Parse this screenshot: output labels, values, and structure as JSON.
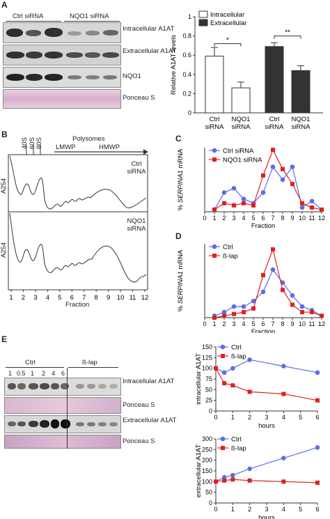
{
  "panel_A": {
    "label": "A",
    "ctrl_header": "Ctrl siRNA",
    "nqo1_header": "NQO1 siRNA",
    "blot_labels": [
      "Intracellular A1AT",
      "Extracellular A1AT",
      "NQO1",
      "Ponceau S"
    ]
  },
  "panel_B": {
    "label": "B",
    "peak_labels": [
      "40S",
      "60S",
      "80S"
    ],
    "polysomes": "Polysomes",
    "lmwp": "LMWP",
    "hmwp": "HMWP",
    "trace1_label": "Ctrl siRNA",
    "trace2_label": "NQO1 siRNA",
    "y_label": "A254",
    "x_ticks": [
      "1",
      "2",
      "3",
      "4",
      "5",
      "6",
      "7",
      "8",
      "9",
      "10",
      "11",
      "12"
    ],
    "x_label": "Fraction"
  },
  "panel_C": {
    "label": "C"
  },
  "panel_D": {
    "label": "D"
  },
  "panel_E": {
    "label": "E",
    "ctrl_header": "Ctrl",
    "blap_header": "ß-lap",
    "lane_ticks": [
      "1",
      "0.5",
      "1",
      "2",
      "4",
      "6"
    ],
    "blot_labels": [
      "Intracellular A1AT",
      "Ponceau S",
      "Extracellular A1AT",
      "Ponceau S"
    ]
  },
  "chart_data": [
    {
      "id": "A",
      "type": "bar",
      "categories": [
        "Ctrl siRNA",
        "NQO1 siRNA",
        "Ctrl siRNA",
        "NQO1 siRNA"
      ],
      "series": [
        {
          "name": "Intracellular",
          "values": [
            0.59,
            0.26,
            null,
            null
          ],
          "errors": [
            0.09,
            0.06,
            null,
            null
          ],
          "color": "#ffffff"
        },
        {
          "name": "Extracellular",
          "values": [
            null,
            null,
            0.69,
            0.44
          ],
          "errors": [
            null,
            null,
            0.04,
            0.05
          ],
          "color": "#333333"
        }
      ],
      "significance": [
        "*",
        "**"
      ],
      "ylabel": "Relative A1AT levels",
      "ylim": [
        0,
        1
      ],
      "yticks": [
        "0",
        "0.2",
        "0.4",
        "0.6",
        "0.8",
        "1"
      ],
      "legend": "top-left"
    },
    {
      "id": "C",
      "type": "line",
      "x": [
        1,
        2,
        3,
        4,
        5,
        6,
        7,
        8,
        9,
        10,
        11,
        12
      ],
      "series": [
        {
          "name": "Ctrl siRNA",
          "values": [
            1,
            9,
            11,
            6,
            4,
            9,
            21,
            15,
            21,
            2,
            5,
            1
          ],
          "color": "#5b6ee6"
        },
        {
          "name": "NQO1 siRNA",
          "values": [
            1,
            4,
            3,
            4,
            3,
            17,
            29,
            20,
            13,
            4,
            2,
            1
          ],
          "color": "#e02020"
        }
      ],
      "xlabel": "Fraction",
      "ylabel": "% SERPINA1 mRNA",
      "xlim": [
        0,
        12
      ],
      "ylim": [
        0,
        30
      ],
      "xticks": [
        "0",
        "1",
        "2",
        "3",
        "4",
        "5",
        "6",
        "7",
        "8",
        "9",
        "10",
        "11",
        "12"
      ],
      "legend": "top-left"
    },
    {
      "id": "D",
      "type": "line",
      "x": [
        1,
        2,
        3,
        4,
        5,
        6,
        7,
        8,
        9,
        10,
        11,
        12
      ],
      "series": [
        {
          "name": "Ctrl",
          "values": [
            1,
            3,
            6,
            6,
            9,
            14,
            26,
            19,
            12,
            6,
            4,
            1
          ],
          "color": "#5b6ee6"
        },
        {
          "name": "ß-lap",
          "values": [
            0,
            1,
            2,
            3,
            5,
            23,
            37,
            15,
            7,
            3,
            3,
            1
          ],
          "color": "#e02020"
        }
      ],
      "xlabel": "Fraction",
      "ylabel": "% SERPINA1 mRNA",
      "xlim": [
        0,
        12
      ],
      "ylim": [
        0,
        40
      ],
      "xticks": [
        "0",
        "1",
        "2",
        "3",
        "4",
        "5",
        "6",
        "7",
        "8",
        "9",
        "10",
        "11",
        "12"
      ],
      "legend": "top-left"
    },
    {
      "id": "E1",
      "type": "line",
      "x": [
        0,
        0.5,
        1,
        2,
        4,
        6
      ],
      "series": [
        {
          "name": "Ctrl",
          "values": [
            100,
            90,
            100,
            120,
            105,
            90
          ],
          "color": "#5b6ee6"
        },
        {
          "name": "ß-lap",
          "values": [
            100,
            65,
            60,
            45,
            40,
            25
          ],
          "color": "#e02020"
        }
      ],
      "xlabel": "hours",
      "ylabel": "intracellular A1AT",
      "xlim": [
        0,
        6
      ],
      "ylim": [
        0,
        150
      ],
      "yticks": [
        "0",
        "25",
        "50",
        "75",
        "100",
        "125",
        "150"
      ],
      "xticks": [
        "0",
        "1",
        "2",
        "3",
        "4",
        "5",
        "6"
      ],
      "legend": "top-right"
    },
    {
      "id": "E2",
      "type": "line",
      "x": [
        0,
        0.5,
        1,
        2,
        4,
        6
      ],
      "series": [
        {
          "name": "Ctrl",
          "values": [
            100,
            120,
            130,
            160,
            210,
            260
          ],
          "color": "#5b6ee6"
        },
        {
          "name": "ß-lap",
          "values": [
            100,
            105,
            110,
            105,
            100,
            95
          ],
          "color": "#e02020"
        }
      ],
      "xlabel": "hours",
      "ylabel": "extracellular A1AT",
      "xlim": [
        0,
        6
      ],
      "ylim": [
        0,
        300
      ],
      "yticks": [
        "0",
        "50",
        "100",
        "150",
        "200",
        "250",
        "300"
      ],
      "xticks": [
        "0",
        "1",
        "2",
        "3",
        "4",
        "5",
        "6"
      ],
      "legend": "top-left"
    }
  ]
}
